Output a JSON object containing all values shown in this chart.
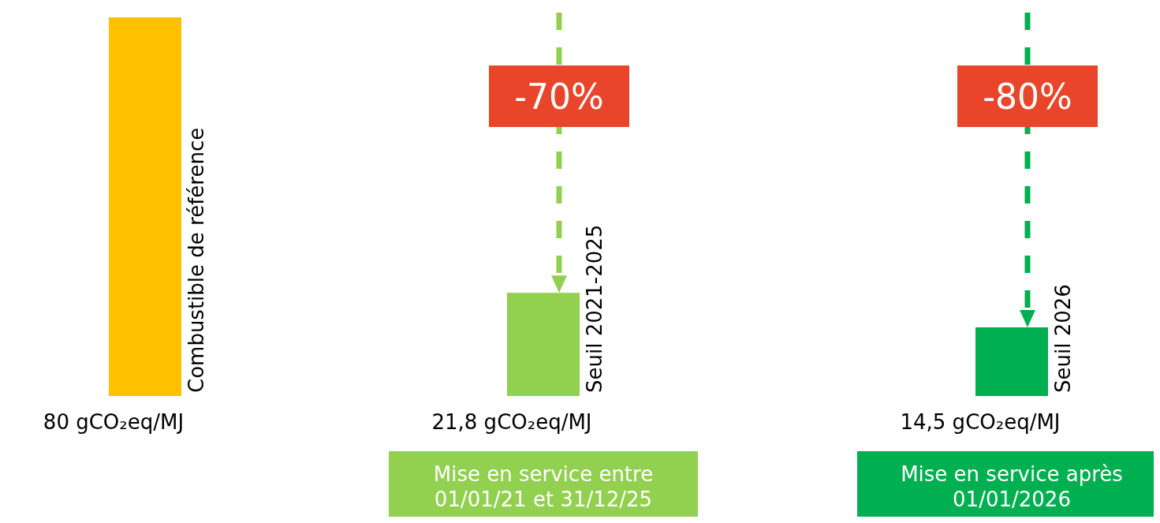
{
  "chart_data": {
    "type": "bar",
    "categories": [
      "Combustible de référence",
      "Seuil 2021-2025",
      "Seuil 2026"
    ],
    "values": [
      80,
      21.8,
      14.5
    ],
    "colors": [
      "#ffc000",
      "#92d050",
      "#00b050"
    ],
    "value_labels": [
      "80 gCO₂eq/MJ",
      "21,8 gCO₂eq/MJ",
      "14,5 gCO₂eq/MJ"
    ],
    "annotations": [
      "-70%",
      "-80%",
      "Mise en service entre\n01/01/21 et 31/12/25",
      "Mise en service après\n01/01/2026"
    ]
  }
}
